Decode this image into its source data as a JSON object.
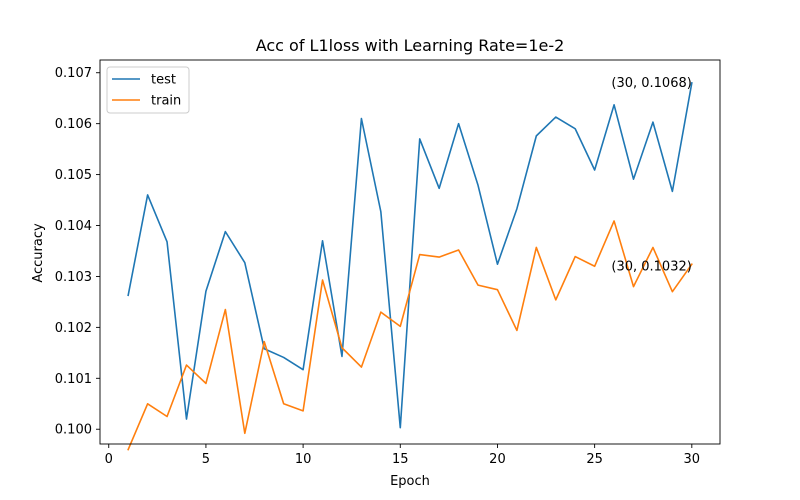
{
  "chart_data": {
    "type": "line",
    "title": "Acc of L1loss with Learning Rate=1e-2",
    "xlabel": "Epoch",
    "ylabel": "Accuracy",
    "xlim": [
      -0.45,
      31.45
    ],
    "ylim": [
      0.09971,
      0.10725
    ],
    "xticks": [
      0,
      5,
      10,
      15,
      20,
      25,
      30
    ],
    "yticks": [
      0.1,
      0.101,
      0.102,
      0.103,
      0.104,
      0.105,
      0.106,
      0.107
    ],
    "ytick_labels": [
      "0.100",
      "0.101",
      "0.102",
      "0.103",
      "0.104",
      "0.105",
      "0.106",
      "0.107"
    ],
    "legend_position": "upper-left",
    "grid": false,
    "x": [
      1,
      2,
      3,
      4,
      5,
      6,
      7,
      8,
      9,
      10,
      11,
      12,
      13,
      14,
      15,
      16,
      17,
      18,
      19,
      20,
      21,
      22,
      23,
      24,
      25,
      26,
      27,
      28,
      29,
      30
    ],
    "series": [
      {
        "name": "test",
        "color": "#1f77b4",
        "values": [
          0.10263,
          0.1046,
          0.10368,
          0.1002,
          0.10271,
          0.10388,
          0.10327,
          0.10158,
          0.10141,
          0.10117,
          0.1037,
          0.10143,
          0.1061,
          0.10427,
          0.10003,
          0.1057,
          0.10473,
          0.106,
          0.10479,
          0.10324,
          0.10433,
          0.10576,
          0.10613,
          0.1059,
          0.10509,
          0.10637,
          0.10491,
          0.10603,
          0.10467,
          0.1068
        ]
      },
      {
        "name": "train",
        "color": "#ff7f0e",
        "values": [
          0.0996,
          0.1005,
          0.10025,
          0.10126,
          0.1009,
          0.10235,
          0.09992,
          0.10172,
          0.1005,
          0.10036,
          0.10293,
          0.1016,
          0.10122,
          0.1023,
          0.10202,
          0.10343,
          0.10338,
          0.10352,
          0.10283,
          0.10274,
          0.10194,
          0.10357,
          0.10254,
          0.10339,
          0.1032,
          0.10409,
          0.1028,
          0.10357,
          0.1027,
          0.10324
        ]
      }
    ],
    "annotations": [
      {
        "text": "(30, 0.1068)",
        "x": 30,
        "y": 0.1068,
        "anchor": "end"
      },
      {
        "text": "(30, 0.1032)",
        "x": 30,
        "y": 0.1032,
        "anchor": "end"
      }
    ]
  }
}
